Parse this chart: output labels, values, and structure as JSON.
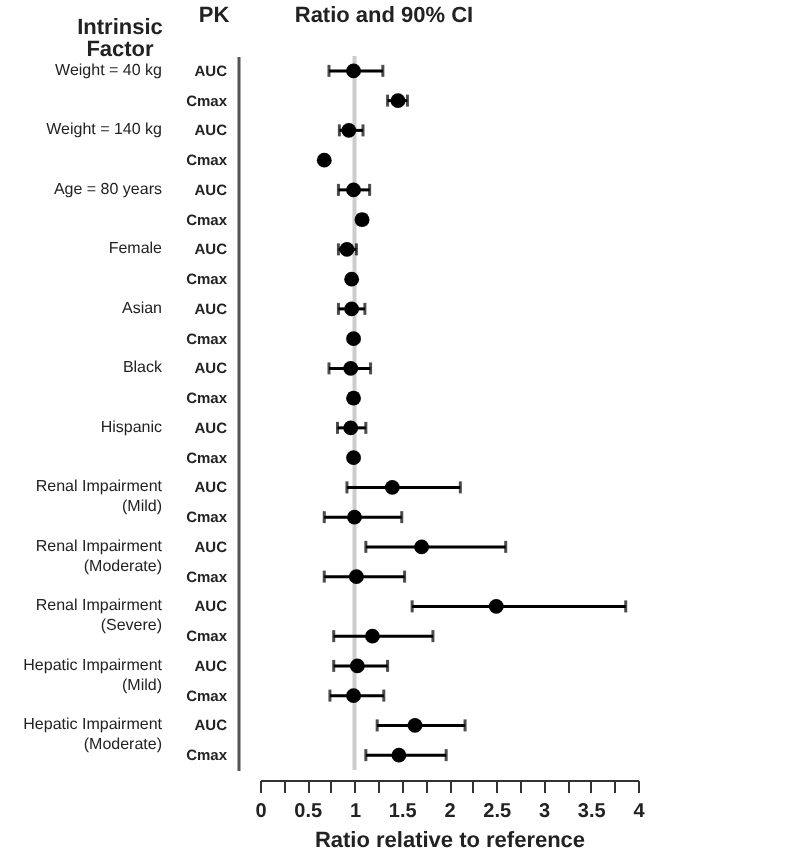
{
  "chart_data": {
    "type": "scatter",
    "orientation": "horizontal",
    "title": "Ratio and 90% CI",
    "ylabel": "PK",
    "xlabel": "Ratio relative to reference",
    "annotations": [
      "Intrinsic Factor",
      "Weight = 40 kg",
      "Weight = 140 kg",
      "Age = 80 years",
      "Female",
      "Asian",
      "Black",
      "Hispanic",
      "Renal Impairment (Mild)",
      "Renal Impairment (Moderate)",
      "Renal Impairment (Severe)",
      "Hepatic Impairment (Mild)",
      "Hepatic Impairment (Moderate)"
    ],
    "categories": [
      "AUC",
      "Cmax",
      "AUC",
      "Cmax",
      "AUC",
      "Cmax",
      "AUC",
      "Cmax",
      "AUC",
      "Cmax",
      "AUC",
      "Cmax",
      "AUC",
      "Cmax",
      "AUC",
      "Cmax",
      "AUC",
      "Cmax",
      "AUC",
      "Cmax",
      "AUC",
      "Cmax",
      "AUC",
      "Cmax"
    ],
    "series": [
      {
        "color": "#000000",
        "values": [
          0.99,
          1.46,
          0.94,
          0.68,
          0.99,
          1.08,
          0.92,
          0.97,
          0.97,
          0.99,
          0.96,
          0.99,
          0.96,
          0.99,
          1.4,
          1.0,
          1.71,
          1.02,
          2.5,
          1.19,
          1.03,
          0.99,
          1.64,
          1.47
        ],
        "errors": [
          [
            0.73,
            1.3
          ],
          [
            1.35,
            1.56
          ],
          [
            0.84,
            1.09
          ],
          null,
          [
            0.83,
            1.16
          ],
          [
            1.04,
            1.12
          ],
          [
            0.83,
            1.02
          ],
          null,
          [
            0.83,
            1.11
          ],
          null,
          [
            0.73,
            1.17
          ],
          [
            0.95,
            1.03
          ],
          [
            0.82,
            1.12
          ],
          null,
          [
            0.92,
            2.12
          ],
          [
            0.68,
            1.5
          ],
          [
            1.12,
            2.6
          ],
          [
            0.68,
            1.53
          ],
          [
            1.61,
            3.87
          ],
          [
            0.78,
            1.83
          ],
          [
            0.78,
            1.35
          ],
          [
            0.74,
            1.31
          ],
          [
            1.24,
            2.17
          ],
          [
            1.12,
            1.97
          ]
        ]
      }
    ],
    "xlim": [
      0,
      4
    ],
    "xticks": [
      0,
      {
        "value": 0.25,
        "label": null
      },
      0.5,
      {
        "value": 0.75,
        "label": null
      },
      1,
      {
        "value": 1.25,
        "label": null
      },
      1.5,
      {
        "value": 1.75,
        "label": null
      },
      2,
      {
        "value": 2.25,
        "label": null
      },
      2.5,
      {
        "value": 2.75,
        "label": null
      },
      3,
      {
        "value": 3.25,
        "label": null
      },
      3.5,
      {
        "value": 3.75,
        "label": null
      },
      4
    ],
    "ref_lines": [
      {
        "axis": "x",
        "value": 1,
        "color": "#cccccc"
      }
    ],
    "marker": "circle",
    "grid": false
  }
}
